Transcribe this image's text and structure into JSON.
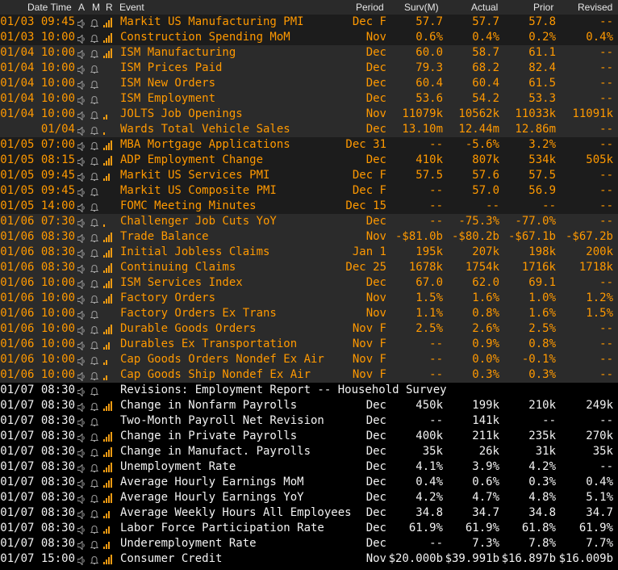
{
  "header": {
    "date_time": "Date Time",
    "a": "A",
    "m": "M",
    "r": "R",
    "event": "Event",
    "period": "Period",
    "surv": "Surv(M)",
    "actual": "Actual",
    "prior": "Prior",
    "revised": "Revised"
  },
  "colors": {
    "accent": "#ff9900",
    "text_white": "#f2f2f2",
    "header_bg": "#2a2a2a",
    "row_dark": "#1c1c1c"
  },
  "rows": [
    {
      "date": "01/03 09:45",
      "event": "Markit US Manufacturing PMI",
      "period": "Dec F",
      "surv": "57.7",
      "actual": "57.7",
      "prior": "57.8",
      "revised": "--",
      "bars": 4,
      "group": "g1"
    },
    {
      "date": "01/03 10:00",
      "event": "Construction Spending MoM",
      "period": "Nov",
      "surv": "0.6%",
      "actual": "0.4%",
      "prior": "0.2%",
      "revised": "0.4%",
      "bars": 4,
      "group": "g1"
    },
    {
      "date": "01/04 10:00",
      "event": "ISM Manufacturing",
      "period": "Dec",
      "surv": "60.0",
      "actual": "58.7",
      "prior": "61.1",
      "revised": "--",
      "bars": 4,
      "group": "g2"
    },
    {
      "date": "01/04 10:00",
      "event": "ISM Prices Paid",
      "period": "Dec",
      "surv": "79.3",
      "actual": "68.2",
      "prior": "82.4",
      "revised": "--",
      "bars": 0,
      "group": "g2"
    },
    {
      "date": "01/04 10:00",
      "event": "ISM New Orders",
      "period": "Dec",
      "surv": "60.4",
      "actual": "60.4",
      "prior": "61.5",
      "revised": "--",
      "bars": 0,
      "group": "g2"
    },
    {
      "date": "01/04 10:00",
      "event": "ISM Employment",
      "period": "Dec",
      "surv": "53.6",
      "actual": "54.2",
      "prior": "53.3",
      "revised": "--",
      "bars": 0,
      "group": "g2"
    },
    {
      "date": "01/04 10:00",
      "event": "JOLTS Job Openings",
      "period": "Nov",
      "surv": "11079k",
      "actual": "10562k",
      "prior": "11033k",
      "revised": "11091k",
      "bars": 2,
      "group": "g2"
    },
    {
      "date": "01/04",
      "event": "Wards Total Vehicle Sales",
      "period": "Dec",
      "surv": "13.10m",
      "actual": "12.44m",
      "prior": "12.86m",
      "revised": "--",
      "bars": 1,
      "group": "g2"
    },
    {
      "date": "01/05 07:00",
      "event": "MBA Mortgage Applications",
      "period": "Dec 31",
      "surv": "--",
      "actual": "-5.6%",
      "prior": "3.2%",
      "revised": "--",
      "bars": 4,
      "group": "g1"
    },
    {
      "date": "01/05 08:15",
      "event": "ADP Employment Change",
      "period": "Dec",
      "surv": "410k",
      "actual": "807k",
      "prior": "534k",
      "revised": "505k",
      "bars": 4,
      "group": "g1"
    },
    {
      "date": "01/05 09:45",
      "event": "Markit US Services PMI",
      "period": "Dec F",
      "surv": "57.5",
      "actual": "57.6",
      "prior": "57.5",
      "revised": "--",
      "bars": 3,
      "group": "g1"
    },
    {
      "date": "01/05 09:45",
      "event": "Markit US Composite PMI",
      "period": "Dec F",
      "surv": "--",
      "actual": "57.0",
      "prior": "56.9",
      "revised": "--",
      "bars": 0,
      "group": "g1"
    },
    {
      "date": "01/05 14:00",
      "event": "FOMC Meeting Minutes",
      "period": "Dec 15",
      "surv": "--",
      "actual": "--",
      "prior": "--",
      "revised": "--",
      "bars": 0,
      "group": "g1"
    },
    {
      "date": "01/06 07:30",
      "event": "Challenger Job Cuts YoY",
      "period": "Dec",
      "surv": "--",
      "actual": "-75.3%",
      "prior": "-77.0%",
      "revised": "--",
      "bars": 1,
      "group": "g2"
    },
    {
      "date": "01/06 08:30",
      "event": "Trade Balance",
      "period": "Nov",
      "surv": "-$81.0b",
      "actual": "-$80.2b",
      "prior": "-$67.1b",
      "revised": "-$67.2b",
      "bars": 4,
      "group": "g2"
    },
    {
      "date": "01/06 08:30",
      "event": "Initial Jobless Claims",
      "period": "Jan 1",
      "surv": "195k",
      "actual": "207k",
      "prior": "198k",
      "revised": "200k",
      "bars": 4,
      "group": "g2"
    },
    {
      "date": "01/06 08:30",
      "event": "Continuing Claims",
      "period": "Dec 25",
      "surv": "1678k",
      "actual": "1754k",
      "prior": "1716k",
      "revised": "1718k",
      "bars": 4,
      "group": "g2"
    },
    {
      "date": "01/06 10:00",
      "event": "ISM Services Index",
      "period": "Dec",
      "surv": "67.0",
      "actual": "62.0",
      "prior": "69.1",
      "revised": "--",
      "bars": 4,
      "group": "g2"
    },
    {
      "date": "01/06 10:00",
      "event": "Factory Orders",
      "period": "Nov",
      "surv": "1.5%",
      "actual": "1.6%",
      "prior": "1.0%",
      "revised": "1.2%",
      "bars": 4,
      "group": "g2"
    },
    {
      "date": "01/06 10:00",
      "event": "Factory Orders Ex Trans",
      "period": "Nov",
      "surv": "1.1%",
      "actual": "0.8%",
      "prior": "1.6%",
      "revised": "1.5%",
      "bars": 0,
      "group": "g2"
    },
    {
      "date": "01/06 10:00",
      "event": "Durable Goods Orders",
      "period": "Nov F",
      "surv": "2.5%",
      "actual": "2.6%",
      "prior": "2.5%",
      "revised": "--",
      "bars": 4,
      "group": "g2"
    },
    {
      "date": "01/06 10:00",
      "event": "Durables Ex Transportation",
      "period": "Nov F",
      "surv": "--",
      "actual": "0.9%",
      "prior": "0.8%",
      "revised": "--",
      "bars": 3,
      "group": "g2"
    },
    {
      "date": "01/06 10:00",
      "event": "Cap Goods Orders Nondef Ex Air",
      "period": "Nov F",
      "surv": "--",
      "actual": "0.0%",
      "prior": "-0.1%",
      "revised": "--",
      "bars": 2,
      "group": "g2"
    },
    {
      "date": "01/06 10:00",
      "event": "Cap Goods Ship Nondef Ex Air",
      "period": "Nov F",
      "surv": "--",
      "actual": "0.3%",
      "prior": "0.3%",
      "revised": "--",
      "bars": 2,
      "group": "g2"
    },
    {
      "date": "01/07 08:30",
      "event": "Revisions: Employment Report -- Household Survey",
      "period": "",
      "surv": "",
      "actual": "",
      "prior": "",
      "revised": "",
      "bars": 0,
      "group": "g0",
      "white": true
    },
    {
      "date": "01/07 08:30",
      "event": "Change in Nonfarm Payrolls",
      "period": "Dec",
      "surv": "450k",
      "actual": "199k",
      "prior": "210k",
      "revised": "249k",
      "bars": 4,
      "group": "g0",
      "white": true
    },
    {
      "date": "01/07 08:30",
      "event": "Two-Month Payroll Net Revision",
      "period": "Dec",
      "surv": "--",
      "actual": "141k",
      "prior": "--",
      "revised": "--",
      "bars": 0,
      "group": "g0",
      "white": true
    },
    {
      "date": "01/07 08:30",
      "event": "Change in Private Payrolls",
      "period": "Dec",
      "surv": "400k",
      "actual": "211k",
      "prior": "235k",
      "revised": "270k",
      "bars": 4,
      "group": "g0",
      "white": true
    },
    {
      "date": "01/07 08:30",
      "event": "Change in Manufact. Payrolls",
      "period": "Dec",
      "surv": "35k",
      "actual": "26k",
      "prior": "31k",
      "revised": "35k",
      "bars": 4,
      "group": "g0",
      "white": true
    },
    {
      "date": "01/07 08:30",
      "event": "Unemployment Rate",
      "period": "Dec",
      "surv": "4.1%",
      "actual": "3.9%",
      "prior": "4.2%",
      "revised": "--",
      "bars": 4,
      "group": "g0",
      "white": true
    },
    {
      "date": "01/07 08:30",
      "event": "Average Hourly Earnings MoM",
      "period": "Dec",
      "surv": "0.4%",
      "actual": "0.6%",
      "prior": "0.3%",
      "revised": "0.4%",
      "bars": 4,
      "group": "g0",
      "white": true
    },
    {
      "date": "01/07 08:30",
      "event": "Average Hourly Earnings YoY",
      "period": "Dec",
      "surv": "4.2%",
      "actual": "4.7%",
      "prior": "4.8%",
      "revised": "5.1%",
      "bars": 4,
      "group": "g0",
      "white": true
    },
    {
      "date": "01/07 08:30",
      "event": "Average Weekly Hours All Employees",
      "period": "Dec",
      "surv": "34.8",
      "actual": "34.7",
      "prior": "34.8",
      "revised": "34.7",
      "bars": 3,
      "group": "g0",
      "white": true
    },
    {
      "date": "01/07 08:30",
      "event": "Labor Force Participation Rate",
      "period": "Dec",
      "surv": "61.9%",
      "actual": "61.9%",
      "prior": "61.8%",
      "revised": "61.9%",
      "bars": 3,
      "group": "g0",
      "white": true
    },
    {
      "date": "01/07 08:30",
      "event": "Underemployment Rate",
      "period": "Dec",
      "surv": "--",
      "actual": "7.3%",
      "prior": "7.8%",
      "revised": "7.7%",
      "bars": 3,
      "group": "g0",
      "white": true
    },
    {
      "date": "01/07 15:00",
      "event": "Consumer Credit",
      "period": "Nov",
      "surv": "$20.000b",
      "actual": "$39.991b",
      "prior": "$16.897b",
      "revised": "$16.009b",
      "bars": 4,
      "group": "g0",
      "white": true
    }
  ]
}
